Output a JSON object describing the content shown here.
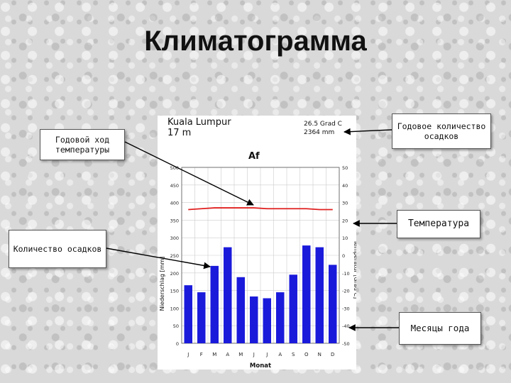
{
  "title": "Климатограмма",
  "notes": {
    "annual_temp": "Годовой ход температуры",
    "annual_precip": "Годовое количество осадков",
    "precip": "Количество осадков",
    "temperature": "Температура",
    "months": "Месяцы года"
  },
  "chart_data": {
    "type": "bar",
    "station": "Kuala Lumpur",
    "elevation": "17 m",
    "mean_temp": "26.5 Grad C",
    "annual_precip": "2364 mm",
    "climate_class": "Af",
    "categories": [
      "J",
      "F",
      "M",
      "A",
      "M",
      "J",
      "J",
      "A",
      "S",
      "O",
      "N",
      "D"
    ],
    "xlabel": "Monat",
    "ylabel_left": "Niederschlag [mm]",
    "ylabel_right": "Temperatur [Grad C]",
    "ylim_left": [
      0,
      500
    ],
    "ylim_right": [
      -50,
      50
    ],
    "left_ticks": [
      0,
      50,
      100,
      150,
      200,
      250,
      300,
      350,
      400,
      450,
      500
    ],
    "right_ticks": [
      -50,
      -40,
      -30,
      -20,
      -10,
      0,
      10,
      20,
      30,
      40,
      50
    ],
    "series": [
      {
        "type": "bar",
        "values": [
          165,
          145,
          220,
          273,
          188,
          133,
          128,
          145,
          195,
          278,
          273,
          223
        ],
        "color": "#1a1adb"
      },
      {
        "type": "line",
        "values": [
          26,
          26.5,
          27,
          27,
          27,
          27,
          26.5,
          26.5,
          26.5,
          26.5,
          26,
          26
        ],
        "color": "#e02020"
      }
    ]
  }
}
